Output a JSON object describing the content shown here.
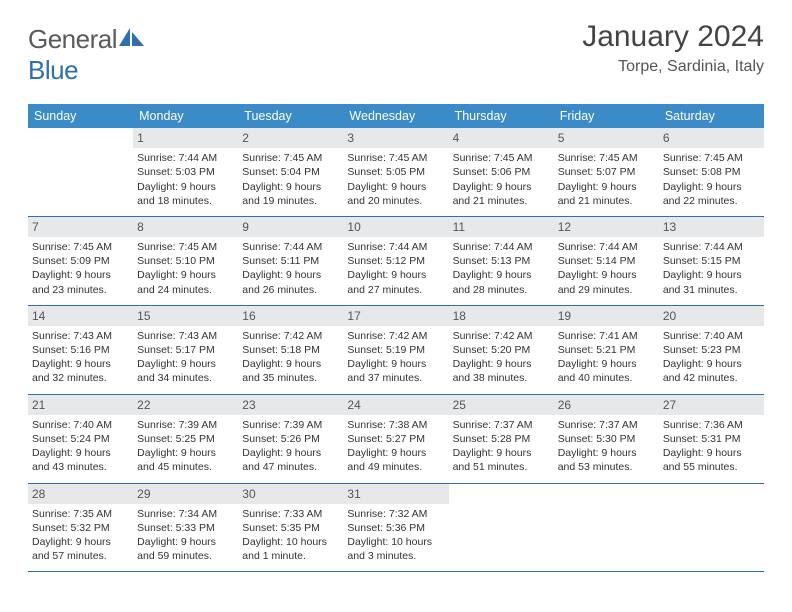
{
  "logo": {
    "part1": "General",
    "part2": "Blue"
  },
  "title": "January 2024",
  "location": "Torpe, Sardinia, Italy",
  "colors": {
    "header_bg": "#3b8bc9",
    "header_text": "#ffffff",
    "daynum_bg": "#e6e8ea",
    "border": "#2f6fad",
    "logo_gray": "#5a5a5a",
    "logo_blue": "#2f6fad"
  },
  "weekdays": [
    "Sunday",
    "Monday",
    "Tuesday",
    "Wednesday",
    "Thursday",
    "Friday",
    "Saturday"
  ],
  "weeks": [
    [
      {
        "n": "",
        "l1": "",
        "l2": "",
        "l3": "",
        "l4": ""
      },
      {
        "n": "1",
        "l1": "Sunrise: 7:44 AM",
        "l2": "Sunset: 5:03 PM",
        "l3": "Daylight: 9 hours",
        "l4": "and 18 minutes."
      },
      {
        "n": "2",
        "l1": "Sunrise: 7:45 AM",
        "l2": "Sunset: 5:04 PM",
        "l3": "Daylight: 9 hours",
        "l4": "and 19 minutes."
      },
      {
        "n": "3",
        "l1": "Sunrise: 7:45 AM",
        "l2": "Sunset: 5:05 PM",
        "l3": "Daylight: 9 hours",
        "l4": "and 20 minutes."
      },
      {
        "n": "4",
        "l1": "Sunrise: 7:45 AM",
        "l2": "Sunset: 5:06 PM",
        "l3": "Daylight: 9 hours",
        "l4": "and 21 minutes."
      },
      {
        "n": "5",
        "l1": "Sunrise: 7:45 AM",
        "l2": "Sunset: 5:07 PM",
        "l3": "Daylight: 9 hours",
        "l4": "and 21 minutes."
      },
      {
        "n": "6",
        "l1": "Sunrise: 7:45 AM",
        "l2": "Sunset: 5:08 PM",
        "l3": "Daylight: 9 hours",
        "l4": "and 22 minutes."
      }
    ],
    [
      {
        "n": "7",
        "l1": "Sunrise: 7:45 AM",
        "l2": "Sunset: 5:09 PM",
        "l3": "Daylight: 9 hours",
        "l4": "and 23 minutes."
      },
      {
        "n": "8",
        "l1": "Sunrise: 7:45 AM",
        "l2": "Sunset: 5:10 PM",
        "l3": "Daylight: 9 hours",
        "l4": "and 24 minutes."
      },
      {
        "n": "9",
        "l1": "Sunrise: 7:44 AM",
        "l2": "Sunset: 5:11 PM",
        "l3": "Daylight: 9 hours",
        "l4": "and 26 minutes."
      },
      {
        "n": "10",
        "l1": "Sunrise: 7:44 AM",
        "l2": "Sunset: 5:12 PM",
        "l3": "Daylight: 9 hours",
        "l4": "and 27 minutes."
      },
      {
        "n": "11",
        "l1": "Sunrise: 7:44 AM",
        "l2": "Sunset: 5:13 PM",
        "l3": "Daylight: 9 hours",
        "l4": "and 28 minutes."
      },
      {
        "n": "12",
        "l1": "Sunrise: 7:44 AM",
        "l2": "Sunset: 5:14 PM",
        "l3": "Daylight: 9 hours",
        "l4": "and 29 minutes."
      },
      {
        "n": "13",
        "l1": "Sunrise: 7:44 AM",
        "l2": "Sunset: 5:15 PM",
        "l3": "Daylight: 9 hours",
        "l4": "and 31 minutes."
      }
    ],
    [
      {
        "n": "14",
        "l1": "Sunrise: 7:43 AM",
        "l2": "Sunset: 5:16 PM",
        "l3": "Daylight: 9 hours",
        "l4": "and 32 minutes."
      },
      {
        "n": "15",
        "l1": "Sunrise: 7:43 AM",
        "l2": "Sunset: 5:17 PM",
        "l3": "Daylight: 9 hours",
        "l4": "and 34 minutes."
      },
      {
        "n": "16",
        "l1": "Sunrise: 7:42 AM",
        "l2": "Sunset: 5:18 PM",
        "l3": "Daylight: 9 hours",
        "l4": "and 35 minutes."
      },
      {
        "n": "17",
        "l1": "Sunrise: 7:42 AM",
        "l2": "Sunset: 5:19 PM",
        "l3": "Daylight: 9 hours",
        "l4": "and 37 minutes."
      },
      {
        "n": "18",
        "l1": "Sunrise: 7:42 AM",
        "l2": "Sunset: 5:20 PM",
        "l3": "Daylight: 9 hours",
        "l4": "and 38 minutes."
      },
      {
        "n": "19",
        "l1": "Sunrise: 7:41 AM",
        "l2": "Sunset: 5:21 PM",
        "l3": "Daylight: 9 hours",
        "l4": "and 40 minutes."
      },
      {
        "n": "20",
        "l1": "Sunrise: 7:40 AM",
        "l2": "Sunset: 5:23 PM",
        "l3": "Daylight: 9 hours",
        "l4": "and 42 minutes."
      }
    ],
    [
      {
        "n": "21",
        "l1": "Sunrise: 7:40 AM",
        "l2": "Sunset: 5:24 PM",
        "l3": "Daylight: 9 hours",
        "l4": "and 43 minutes."
      },
      {
        "n": "22",
        "l1": "Sunrise: 7:39 AM",
        "l2": "Sunset: 5:25 PM",
        "l3": "Daylight: 9 hours",
        "l4": "and 45 minutes."
      },
      {
        "n": "23",
        "l1": "Sunrise: 7:39 AM",
        "l2": "Sunset: 5:26 PM",
        "l3": "Daylight: 9 hours",
        "l4": "and 47 minutes."
      },
      {
        "n": "24",
        "l1": "Sunrise: 7:38 AM",
        "l2": "Sunset: 5:27 PM",
        "l3": "Daylight: 9 hours",
        "l4": "and 49 minutes."
      },
      {
        "n": "25",
        "l1": "Sunrise: 7:37 AM",
        "l2": "Sunset: 5:28 PM",
        "l3": "Daylight: 9 hours",
        "l4": "and 51 minutes."
      },
      {
        "n": "26",
        "l1": "Sunrise: 7:37 AM",
        "l2": "Sunset: 5:30 PM",
        "l3": "Daylight: 9 hours",
        "l4": "and 53 minutes."
      },
      {
        "n": "27",
        "l1": "Sunrise: 7:36 AM",
        "l2": "Sunset: 5:31 PM",
        "l3": "Daylight: 9 hours",
        "l4": "and 55 minutes."
      }
    ],
    [
      {
        "n": "28",
        "l1": "Sunrise: 7:35 AM",
        "l2": "Sunset: 5:32 PM",
        "l3": "Daylight: 9 hours",
        "l4": "and 57 minutes."
      },
      {
        "n": "29",
        "l1": "Sunrise: 7:34 AM",
        "l2": "Sunset: 5:33 PM",
        "l3": "Daylight: 9 hours",
        "l4": "and 59 minutes."
      },
      {
        "n": "30",
        "l1": "Sunrise: 7:33 AM",
        "l2": "Sunset: 5:35 PM",
        "l3": "Daylight: 10 hours",
        "l4": "and 1 minute."
      },
      {
        "n": "31",
        "l1": "Sunrise: 7:32 AM",
        "l2": "Sunset: 5:36 PM",
        "l3": "Daylight: 10 hours",
        "l4": "and 3 minutes."
      },
      {
        "n": "",
        "l1": "",
        "l2": "",
        "l3": "",
        "l4": ""
      },
      {
        "n": "",
        "l1": "",
        "l2": "",
        "l3": "",
        "l4": ""
      },
      {
        "n": "",
        "l1": "",
        "l2": "",
        "l3": "",
        "l4": ""
      }
    ]
  ]
}
